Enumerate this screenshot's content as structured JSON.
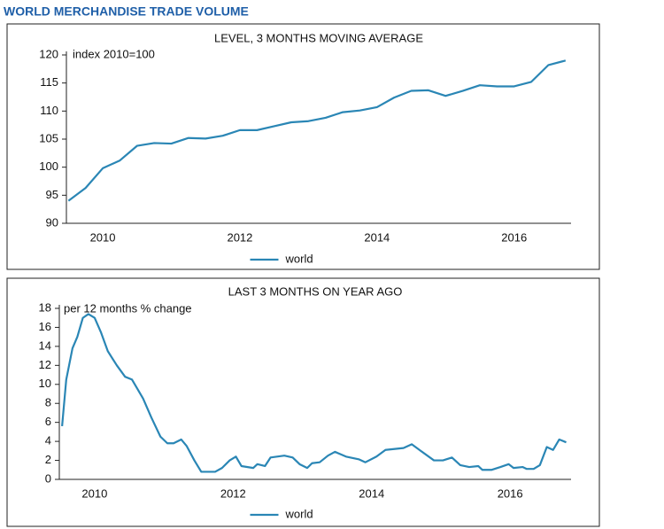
{
  "page_title": "WORLD MERCHANDISE TRADE VOLUME",
  "chart_data": [
    {
      "type": "line",
      "title": "LEVEL, 3 MONTHS MOVING AVERAGE",
      "annotation": "index 2010=100",
      "x": [
        2010.0,
        2010.25,
        2010.5,
        2010.75,
        2011.0,
        2011.25,
        2011.5,
        2011.75,
        2012.0,
        2012.25,
        2012.5,
        2012.75,
        2013.0,
        2013.25,
        2013.5,
        2013.75,
        2014.0,
        2014.25,
        2014.5,
        2014.75,
        2015.0,
        2015.25,
        2015.5,
        2015.75,
        2016.0,
        2016.25,
        2016.5,
        2016.75,
        2017.0,
        2017.25
      ],
      "series": [
        {
          "name": "world",
          "color": "#2a86b5",
          "values": [
            94.0,
            96.3,
            99.8,
            101.2,
            103.8,
            104.3,
            104.2,
            105.2,
            105.1,
            105.6,
            106.6,
            106.6,
            107.3,
            108.0,
            108.2,
            108.8,
            109.8,
            110.1,
            110.7,
            112.4,
            113.6,
            113.7,
            112.7,
            113.6,
            114.6,
            114.4,
            114.4,
            115.2,
            118.2,
            119.0
          ]
        }
      ],
      "xlim": [
        2009.97,
        2017.33
      ],
      "ylim": [
        90,
        120
      ],
      "xticks": [
        {
          "value": 2010.5,
          "label": "2010"
        },
        {
          "value": 2012.5,
          "label": "2012"
        },
        {
          "value": 2014.5,
          "label": "2014"
        },
        {
          "value": 2016.5,
          "label": "2016"
        }
      ],
      "yticks": [
        90,
        95,
        100,
        105,
        110,
        115,
        120
      ],
      "grid": false,
      "legend": "bottom"
    },
    {
      "type": "line",
      "title": "LAST 3 MONTHS ON YEAR AGO",
      "annotation": "per 12 months % change",
      "x": [
        2010.03,
        2010.09,
        2010.18,
        2010.25,
        2010.33,
        2010.41,
        2010.5,
        2010.59,
        2010.69,
        2010.82,
        2010.94,
        2011.04,
        2011.2,
        2011.32,
        2011.45,
        2011.55,
        2011.64,
        2011.75,
        2011.83,
        2011.94,
        2012.04,
        2012.15,
        2012.24,
        2012.34,
        2012.45,
        2012.54,
        2012.62,
        2012.79,
        2012.85,
        2012.96,
        2013.04,
        2013.24,
        2013.36,
        2013.46,
        2013.57,
        2013.64,
        2013.75,
        2013.87,
        2013.97,
        2014.13,
        2014.32,
        2014.41,
        2014.57,
        2014.7,
        2014.96,
        2015.08,
        2015.21,
        2015.4,
        2015.53,
        2015.66,
        2015.78,
        2015.91,
        2016.04,
        2016.1,
        2016.23,
        2016.36,
        2016.48,
        2016.55,
        2016.68,
        2016.74,
        2016.84,
        2016.93,
        2017.03,
        2017.12,
        2017.21,
        2017.31
      ],
      "series": [
        {
          "name": "world",
          "color": "#2a86b5",
          "values": [
            5.6,
            10.5,
            13.8,
            15.0,
            17.0,
            17.4,
            17.0,
            15.5,
            13.5,
            12.0,
            10.8,
            10.5,
            8.5,
            6.5,
            4.5,
            3.8,
            3.8,
            4.2,
            3.5,
            2.0,
            0.8,
            0.8,
            0.8,
            1.2,
            2.0,
            2.4,
            1.4,
            1.2,
            1.6,
            1.4,
            2.3,
            2.5,
            2.3,
            1.6,
            1.2,
            1.7,
            1.8,
            2.5,
            2.9,
            2.4,
            2.1,
            1.8,
            2.4,
            3.1,
            3.3,
            3.7,
            3.0,
            2.0,
            2.0,
            2.3,
            1.5,
            1.3,
            1.4,
            1.0,
            1.0,
            1.3,
            1.6,
            1.2,
            1.3,
            1.1,
            1.1,
            1.5,
            3.4,
            3.1,
            4.2,
            3.9
          ]
        }
      ],
      "xlim": [
        2009.99,
        2017.38
      ],
      "ylim": [
        0,
        18
      ],
      "xticks": [
        {
          "value": 2010.5,
          "label": "2010"
        },
        {
          "value": 2012.5,
          "label": "2012"
        },
        {
          "value": 2014.5,
          "label": "2014"
        },
        {
          "value": 2016.5,
          "label": "2016"
        }
      ],
      "yticks": [
        0,
        2,
        4,
        6,
        8,
        10,
        12,
        14,
        16,
        18
      ],
      "grid": false,
      "legend": "bottom"
    }
  ]
}
